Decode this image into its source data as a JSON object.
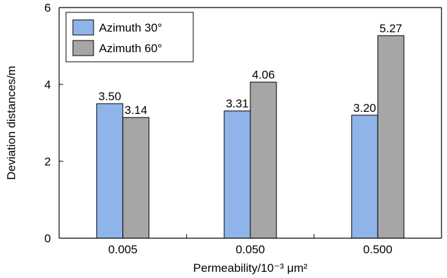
{
  "chart_data": {
    "type": "bar",
    "categories": [
      "0.005",
      "0.050",
      "0.500"
    ],
    "series": [
      {
        "name": "Azimuth 30°",
        "values": [
          3.5,
          3.31,
          3.2
        ],
        "data_labels": [
          "3.50",
          "3.31",
          "3.20"
        ],
        "color": "#8fb4ea"
      },
      {
        "name": "Azimuth 60°",
        "values": [
          3.14,
          4.06,
          5.27
        ],
        "data_labels": [
          "3.14",
          "4.06",
          "5.27"
        ],
        "color": "#a6a6a6"
      }
    ],
    "xlabel": "Permeability/10⁻³ μm²",
    "ylabel": "Deviation distances/m",
    "ylim": [
      0,
      6
    ],
    "yticks": [
      "0",
      "2",
      "4",
      "6"
    ],
    "grid": false,
    "legend_position": "top-left"
  }
}
